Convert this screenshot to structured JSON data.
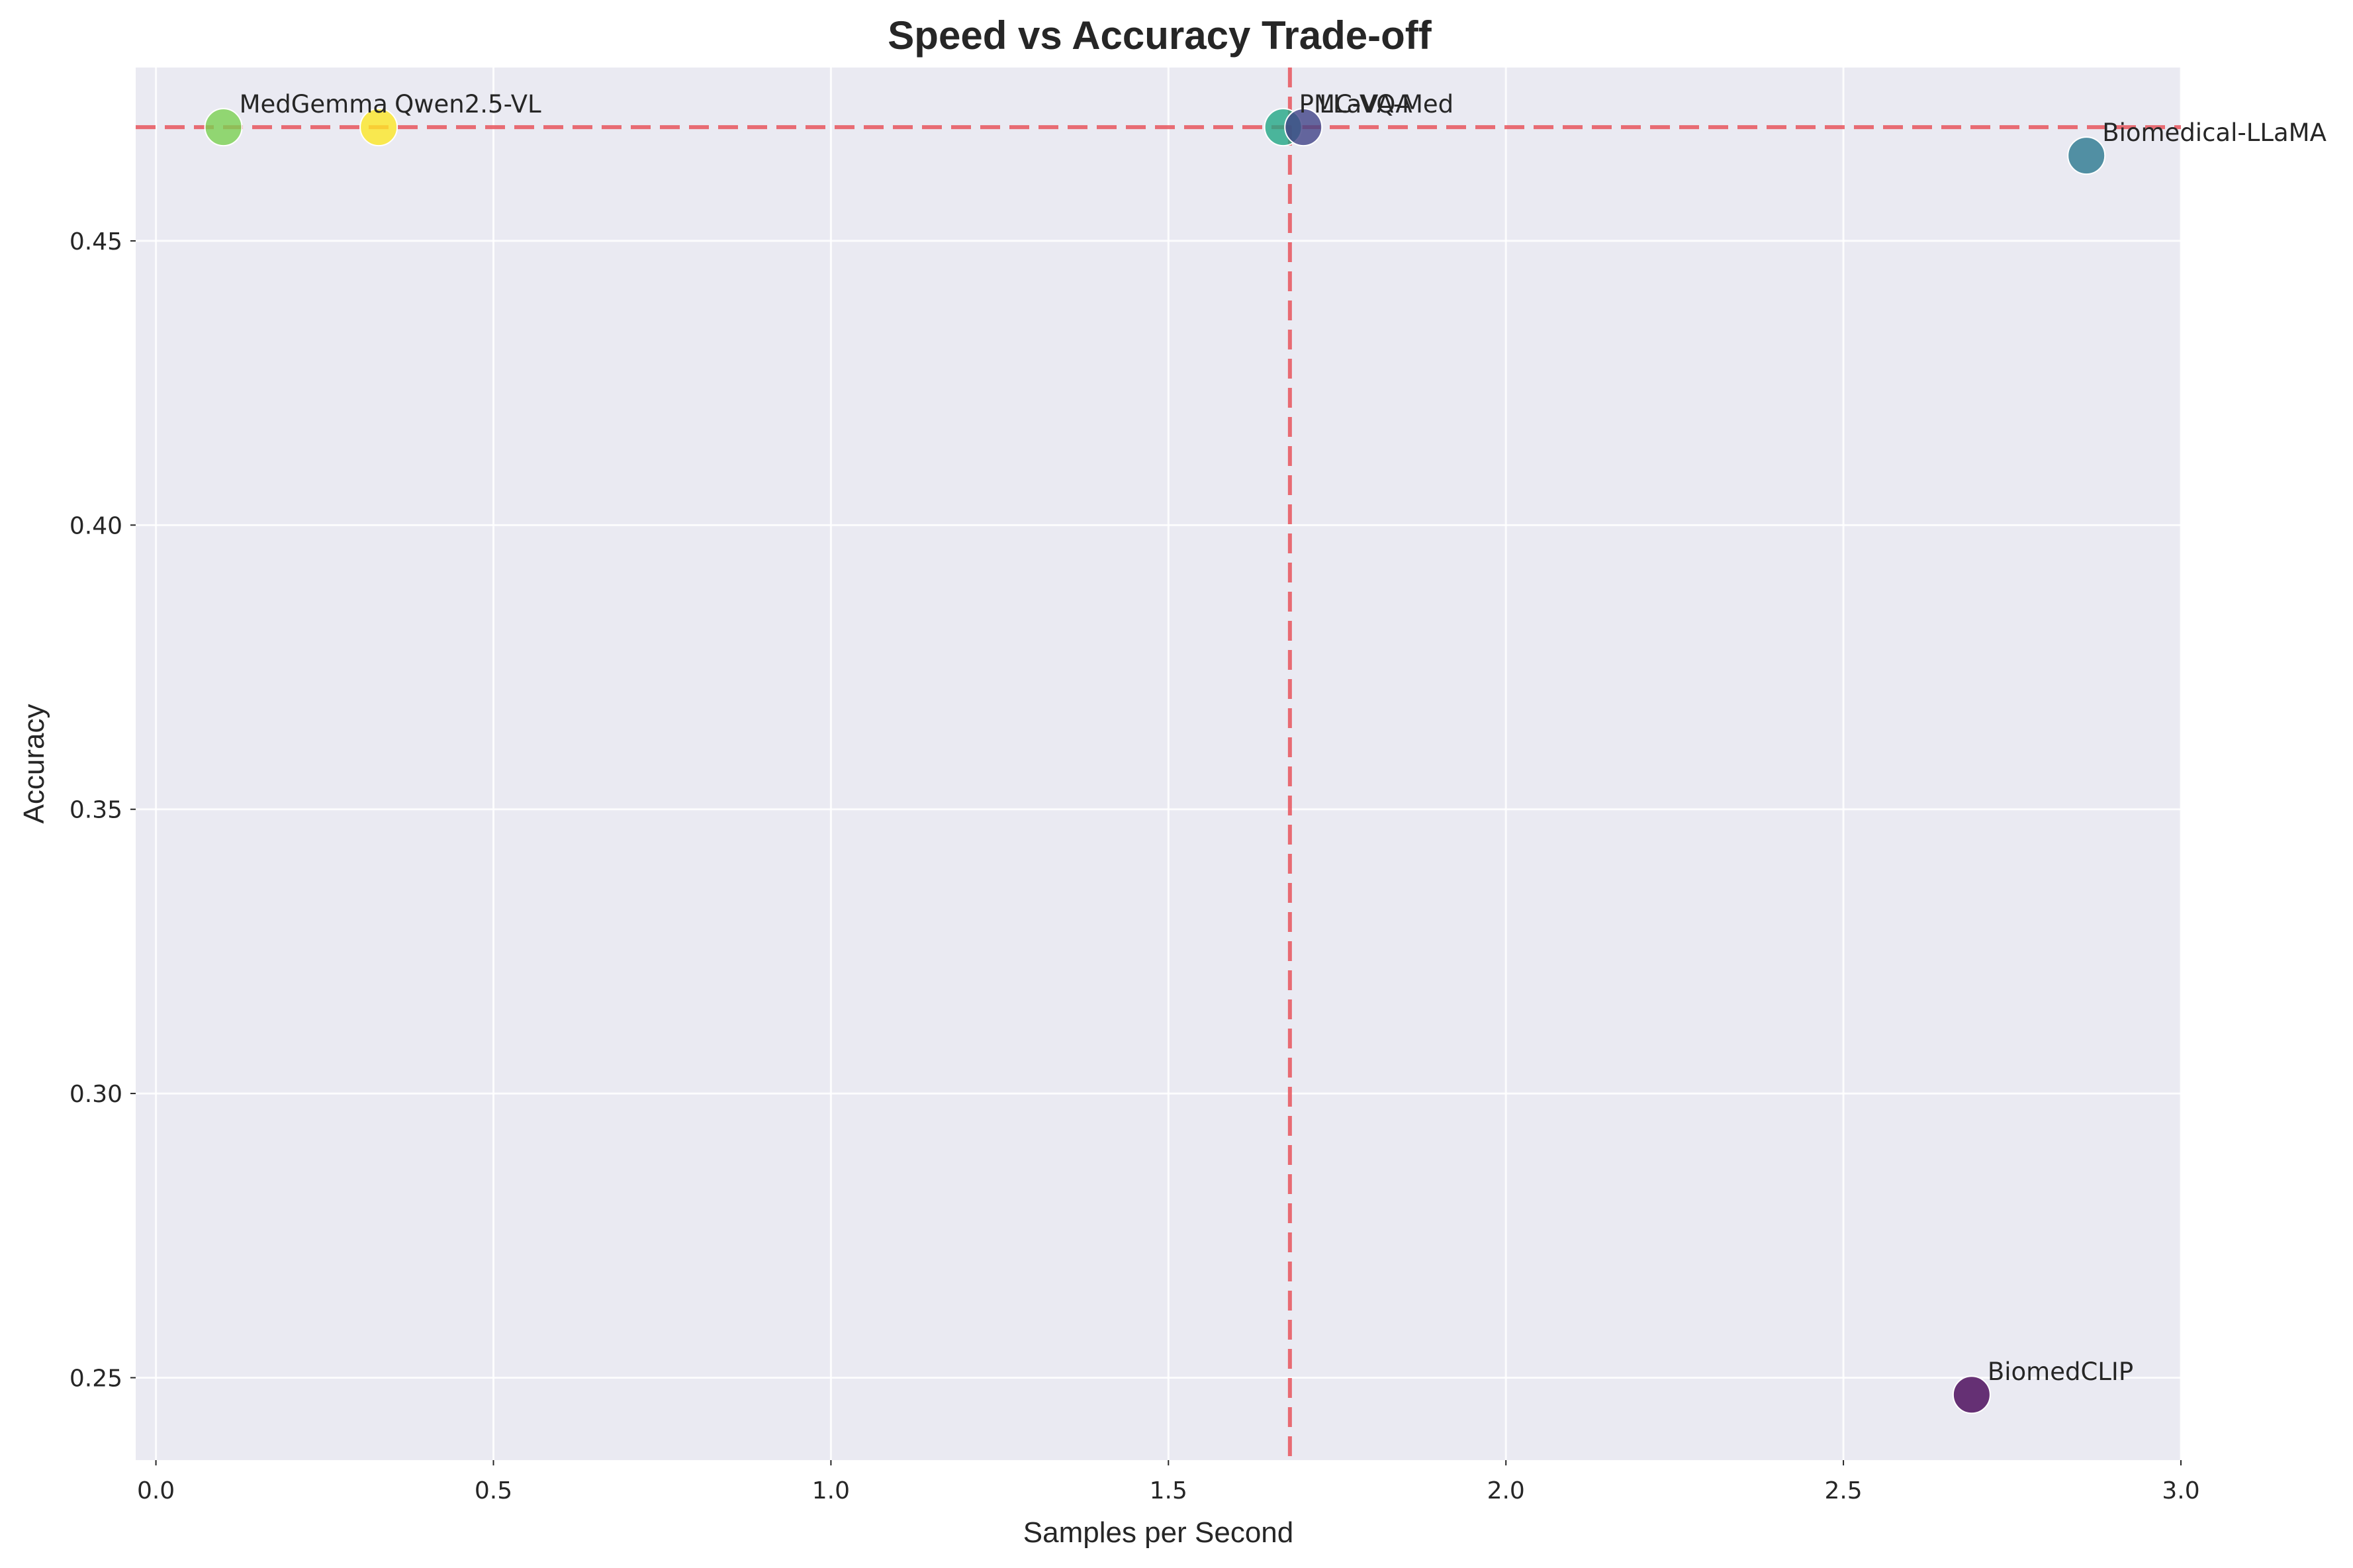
{
  "chart_data": {
    "type": "scatter",
    "title": "Speed vs Accuracy Trade-off",
    "xlabel": "Samples per Second",
    "ylabel": "Accuracy",
    "xlim": [
      -0.03,
      3.0
    ],
    "ylim": [
      0.2355,
      0.4805
    ],
    "xticks": [
      0.0,
      0.5,
      1.0,
      1.5,
      2.0,
      2.5,
      3.0
    ],
    "xtick_labels": [
      "0.0",
      "0.5",
      "1.0",
      "1.5",
      "2.0",
      "2.5",
      "3.0"
    ],
    "yticks": [
      0.25,
      0.3,
      0.35,
      0.4,
      0.45
    ],
    "ytick_labels": [
      "0.25",
      "0.30",
      "0.35",
      "0.40",
      "0.45"
    ],
    "grid": true,
    "reference_lines": {
      "x": 1.68,
      "y": 0.47,
      "color": "#e8555d",
      "style": "dashed"
    },
    "points": [
      {
        "label": "MedGemma",
        "x": 0.1,
        "y": 0.47,
        "color": "#7ad151"
      },
      {
        "label": "Qwen2.5-VL",
        "x": 0.33,
        "y": 0.47,
        "color": "#fde725"
      },
      {
        "label": "PMC-VQA",
        "x": 1.67,
        "y": 0.47,
        "color": "#22a884"
      },
      {
        "label": "LLaVA-Med",
        "x": 1.7,
        "y": 0.47,
        "color": "#414487"
      },
      {
        "label": "Biomedical-LLaMA",
        "x": 2.86,
        "y": 0.465,
        "color": "#2a788e"
      },
      {
        "label": "BiomedCLIP",
        "x": 2.69,
        "y": 0.247,
        "color": "#440154"
      }
    ]
  }
}
